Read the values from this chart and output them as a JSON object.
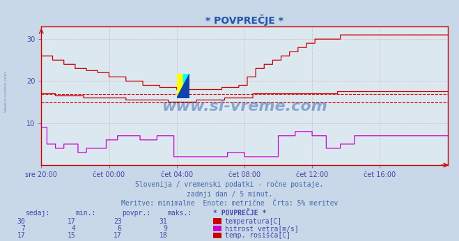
{
  "title": "* POVPREČJE *",
  "bg_color": "#c8d8e8",
  "plot_bg_color": "#dce8f0",
  "grid_color": "#d09090",
  "xlabel_color": "#4444aa",
  "title_color": "#2255aa",
  "xtick_labels": [
    "sre 20:00",
    "čet 00:00",
    "čet 04:00",
    "čet 08:00",
    "čet 12:00",
    "čet 16:00"
  ],
  "xtick_positions": [
    0,
    240,
    480,
    720,
    960,
    1200
  ],
  "ylim": [
    0,
    33
  ],
  "yticks": [
    10,
    20,
    30
  ],
  "subtitle1": "Slovenija / vremenski podatki - ročne postaje.",
  "subtitle2": "zadnji dan / 5 minut.",
  "subtitle3": "Meritve: minimalne  Enote: metrične  Črta: 5% meritev",
  "subtitle_color": "#4466aa",
  "table_header": [
    "sedaj:",
    "min.:",
    "povpr.:",
    "maks.:",
    "* POVPREČJE *"
  ],
  "table_color": "#4444aa",
  "table_rows": [
    {
      "sedaj": "30",
      "min": "17",
      "povpr": "23",
      "maks": "31",
      "color": "#cc0000",
      "label": "temperatura[C]"
    },
    {
      "sedaj": "7",
      "min": "4",
      "povpr": "6",
      "maks": "9",
      "color": "#cc00cc",
      "label": "hitrost vetra[m/s]"
    },
    {
      "sedaj": "17",
      "min": "15",
      "povpr": "17",
      "maks": "18",
      "color": "#cc0000",
      "label": "temp. rosišča[C]"
    }
  ],
  "hline1_y": 17,
  "hline2_y": 15,
  "hline_color": "#cc0000",
  "watermark": "www.si-vreme.com",
  "watermark_color": "#2255aa",
  "n_points": 1441,
  "border_color": "#cc0000",
  "spine_color": "#cc0000"
}
